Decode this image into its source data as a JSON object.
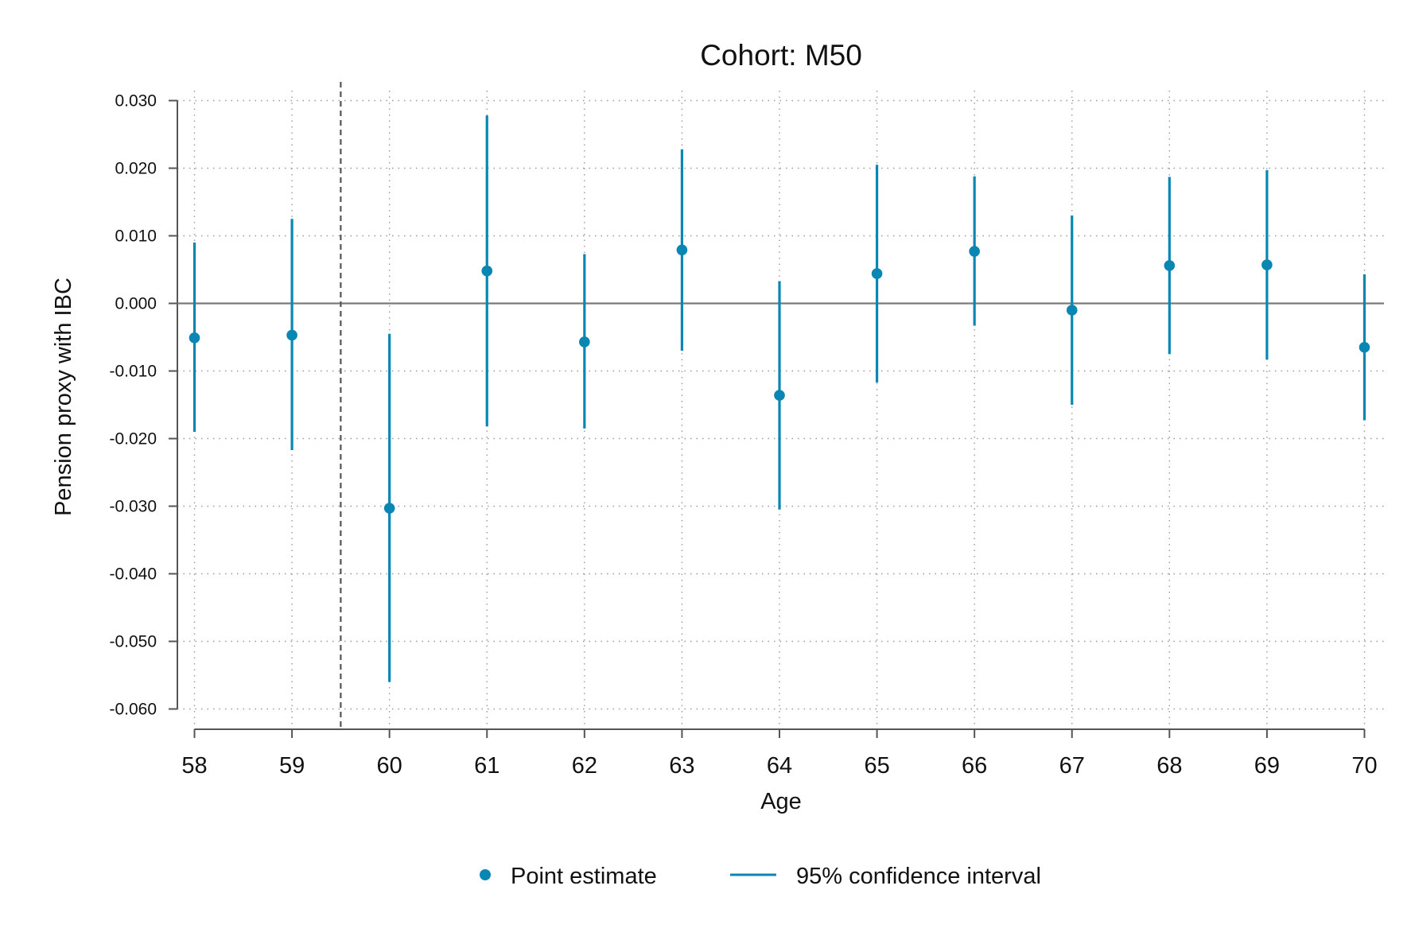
{
  "chart_data": {
    "type": "scatter",
    "title": "Cohort: M50",
    "xlabel": "Age",
    "ylabel": "Pension proxy with IBC",
    "x": [
      58,
      59,
      60,
      61,
      62,
      63,
      64,
      65,
      66,
      67,
      68,
      69,
      70
    ],
    "x_tick_labels": [
      "58",
      "59",
      "60",
      "61",
      "62",
      "63",
      "64",
      "65",
      "66",
      "67",
      "68",
      "69",
      "70"
    ],
    "y_tick_values": [
      0.03,
      0.02,
      0.01,
      0.0,
      -0.01,
      -0.02,
      -0.03,
      -0.04,
      -0.05,
      -0.06
    ],
    "y_tick_labels": [
      "0.030",
      "0.020",
      "0.010",
      "0.000",
      "-0.010",
      "-0.020",
      "-0.030",
      "-0.040",
      "-0.050",
      "-0.060"
    ],
    "xlim": [
      57.8,
      70.2
    ],
    "ylim": [
      -0.063,
      0.031
    ],
    "grid": true,
    "reference_lines": {
      "horizontal_y": 0.0,
      "vertical_x": 59.5
    },
    "series": [
      {
        "name": "Point estimate",
        "marker": "dot",
        "values": [
          -0.0051,
          -0.0047,
          -0.0303,
          0.0048,
          -0.0057,
          0.0079,
          -0.0136,
          0.0044,
          0.0077,
          -0.001,
          0.0056,
          0.0057,
          -0.0065
        ]
      },
      {
        "name": "95% confidence interval",
        "marker": "line",
        "lower": [
          -0.019,
          -0.0217,
          -0.056,
          -0.0182,
          -0.0185,
          -0.007,
          -0.0305,
          -0.0117,
          -0.0033,
          -0.015,
          -0.0075,
          -0.0083,
          -0.0173
        ],
        "upper": [
          0.009,
          0.0125,
          -0.0045,
          0.0278,
          0.0073,
          0.0228,
          0.0033,
          0.0205,
          0.0188,
          0.013,
          0.0187,
          0.0197,
          0.0043
        ]
      }
    ],
    "legend": {
      "placement": "bottom"
    },
    "color": "#0a86b2"
  }
}
